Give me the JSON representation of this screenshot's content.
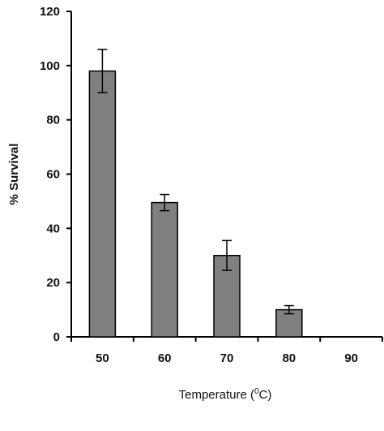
{
  "chart_data": {
    "type": "bar",
    "categories": [
      "50",
      "60",
      "70",
      "80",
      "90"
    ],
    "values": [
      98,
      49.5,
      30,
      10,
      0
    ],
    "errors": [
      8,
      3,
      5.5,
      1.5,
      0
    ],
    "xlabel": "Temperature (",
    "xlabel_superscript": "0",
    "xlabel_suffix": "C)",
    "ylabel": "% Survival",
    "ylim": [
      0,
      120
    ],
    "yticks": [
      0,
      20,
      40,
      60,
      80,
      100,
      120
    ],
    "bar_color": "#808080",
    "grid": false
  }
}
